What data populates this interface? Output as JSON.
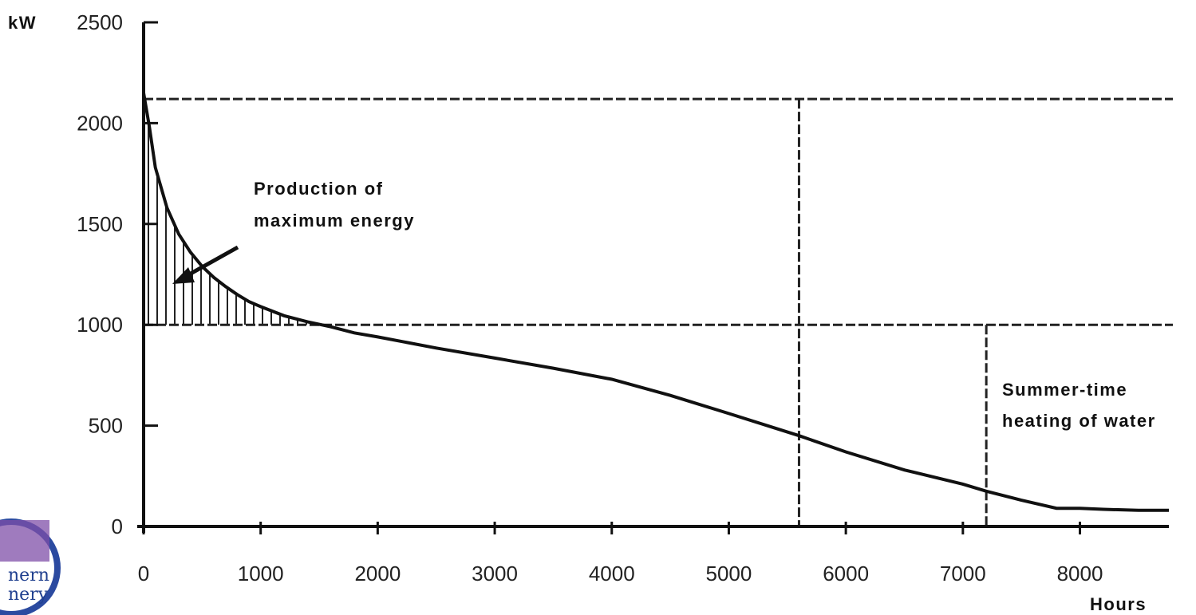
{
  "chart_data": {
    "type": "line",
    "ylabel": "kW",
    "xlabel": "Hours",
    "xlim": [
      0,
      8760
    ],
    "ylim": [
      0,
      2500
    ],
    "x_ticks": [
      "0",
      "1000",
      "2000",
      "3000",
      "4000",
      "5000",
      "6000",
      "7000",
      "8000"
    ],
    "y_ticks": [
      "0",
      "500",
      "1000",
      "1500",
      "2000",
      "2500"
    ],
    "series": [
      {
        "x": [
          0,
          50,
          100,
          200,
          300,
          400,
          500,
          600,
          700,
          800,
          900,
          1000,
          1200,
          1400,
          1600,
          1800,
          2000,
          2500,
          3000,
          3500,
          4000,
          4500,
          5000,
          5600,
          6000,
          6500,
          7000,
          7200,
          7500,
          7800,
          8000,
          8200,
          8500,
          8760
        ],
        "values": [
          2150,
          1980,
          1780,
          1580,
          1450,
          1360,
          1290,
          1235,
          1190,
          1150,
          1115,
          1090,
          1045,
          1015,
          990,
          960,
          940,
          885,
          835,
          785,
          730,
          650,
          560,
          450,
          370,
          280,
          210,
          175,
          130,
          90,
          90,
          85,
          80,
          80
        ]
      }
    ],
    "reference_lines": {
      "horizontal": [
        2120,
        1000
      ],
      "vertical": [
        {
          "x": 5600,
          "y_top": 2120
        },
        {
          "x": 7200,
          "y_top": 1000
        }
      ]
    },
    "shaded_region": {
      "x_from": 0,
      "x_to": 1650,
      "above_y": 1000,
      "pattern": "vertical-hatch"
    },
    "annotations": [
      {
        "lines": [
          "Production of",
          "maximum energy"
        ]
      },
      {
        "lines": [
          "Summer-time",
          "heating of water"
        ]
      }
    ]
  }
}
